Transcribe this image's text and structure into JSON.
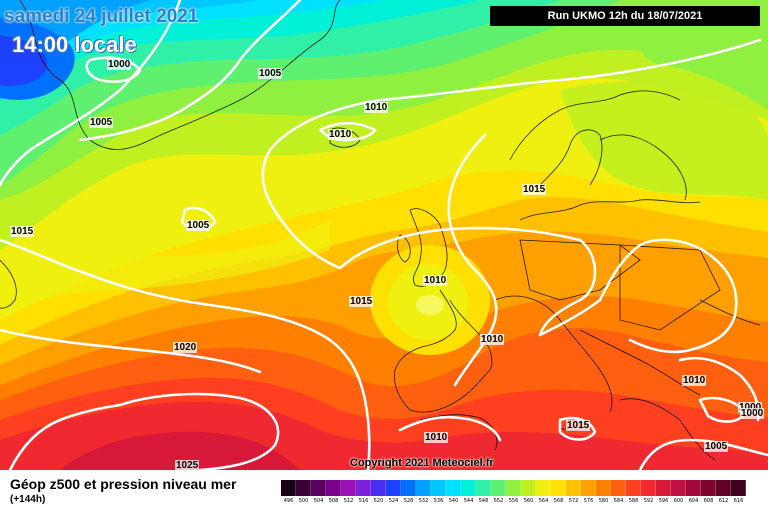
{
  "header": {
    "date": "samedi 24 juillet 2021",
    "local_time": "14:00 locale",
    "run": "Run UKMO 12h du 18/07/2021"
  },
  "copyright": "Copyright 2021 Meteociel.fr",
  "legend": {
    "title": "Géop z500 et pression niveau mer",
    "subtitle": "(+144h)",
    "scale": [
      {
        "v": "496",
        "c": "#1a0018"
      },
      {
        "v": "500",
        "c": "#3a0038"
      },
      {
        "v": "504",
        "c": "#5a0060"
      },
      {
        "v": "508",
        "c": "#7a008a"
      },
      {
        "v": "512",
        "c": "#9a10b4"
      },
      {
        "v": "516",
        "c": "#7a22d8"
      },
      {
        "v": "520",
        "c": "#4a2ef0"
      },
      {
        "v": "524",
        "c": "#1e40ff"
      },
      {
        "v": "528",
        "c": "#0070ff"
      },
      {
        "v": "532",
        "c": "#00a0ff"
      },
      {
        "v": "536",
        "c": "#00c8ff"
      },
      {
        "v": "540",
        "c": "#00e0ff"
      },
      {
        "v": "544",
        "c": "#00f0d8"
      },
      {
        "v": "548",
        "c": "#30f0a8"
      },
      {
        "v": "552",
        "c": "#60f070"
      },
      {
        "v": "556",
        "c": "#90f040"
      },
      {
        "v": "560",
        "c": "#c0f020"
      },
      {
        "v": "564",
        "c": "#f0f010"
      },
      {
        "v": "568",
        "c": "#ffe000"
      },
      {
        "v": "572",
        "c": "#ffc000"
      },
      {
        "v": "576",
        "c": "#ffa000"
      },
      {
        "v": "580",
        "c": "#ff8000"
      },
      {
        "v": "584",
        "c": "#ff6010"
      },
      {
        "v": "588",
        "c": "#ff4020"
      },
      {
        "v": "592",
        "c": "#f02830"
      },
      {
        "v": "596",
        "c": "#d81838"
      },
      {
        "v": "600",
        "c": "#c01040"
      },
      {
        "v": "604",
        "c": "#a00838"
      },
      {
        "v": "608",
        "c": "#800430"
      },
      {
        "v": "612",
        "c": "#600228"
      },
      {
        "v": "616",
        "c": "#400020"
      }
    ]
  },
  "isobars": [
    {
      "label": "1000"
    },
    {
      "label": "1005"
    },
    {
      "label": "1005"
    },
    {
      "label": "1010"
    },
    {
      "label": "1010"
    },
    {
      "label": "1005"
    },
    {
      "label": "1015"
    },
    {
      "label": "1015"
    },
    {
      "label": "1010"
    },
    {
      "label": "1015"
    },
    {
      "label": "1010"
    },
    {
      "label": "1020"
    },
    {
      "label": "1025"
    },
    {
      "label": "1010"
    },
    {
      "label": "1015"
    },
    {
      "label": "1010"
    },
    {
      "label": "1000"
    },
    {
      "label": "1000"
    },
    {
      "label": "1005"
    }
  ]
}
